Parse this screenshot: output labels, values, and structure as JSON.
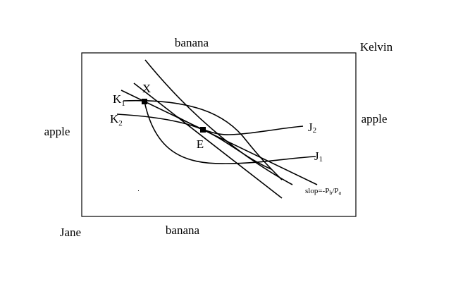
{
  "box": {
    "top_label": "banana",
    "bottom_label": "banana",
    "left_label": "apple",
    "right_label": "apple",
    "top_right_owner": "Kelvin",
    "bottom_left_owner": "Jane"
  },
  "points": [
    {
      "label": "X"
    },
    {
      "label": "E"
    }
  ],
  "curves": [
    {
      "base": "K",
      "sub": "1"
    },
    {
      "base": "K",
      "sub": "2"
    },
    {
      "base": "J",
      "sub": "2"
    },
    {
      "base": "J",
      "sub": "1"
    }
  ],
  "price_line": {
    "prefix": "slop=-P",
    "num_sub": "b",
    "slash": "/P",
    "den_sub": "a"
  }
}
